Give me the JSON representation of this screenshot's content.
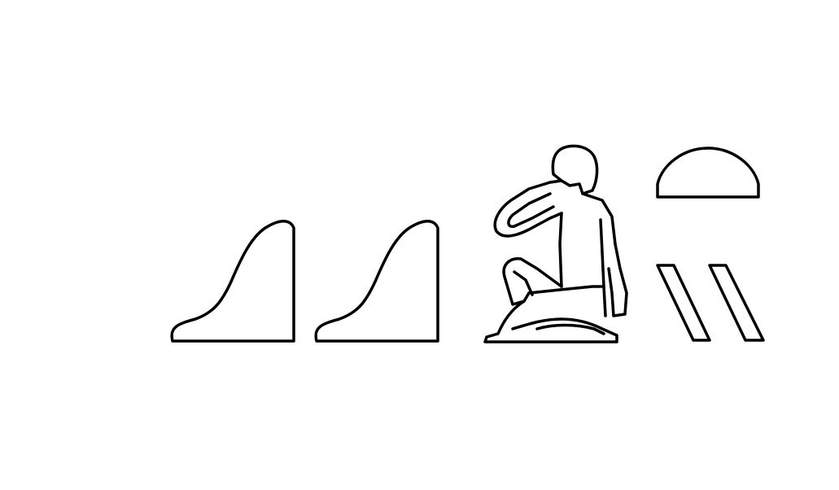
{
  "hieroglyphs": [
    {
      "icon": "hill-slope-icon"
    },
    {
      "icon": "hill-slope-icon"
    },
    {
      "icon": "seated-man-hand-to-mouth-icon"
    },
    {
      "icon": "bread-loaf-icon"
    },
    {
      "icon": "double-stroke-icon"
    }
  ],
  "colors": {
    "ink": "#000000",
    "background": "#ffffff"
  }
}
